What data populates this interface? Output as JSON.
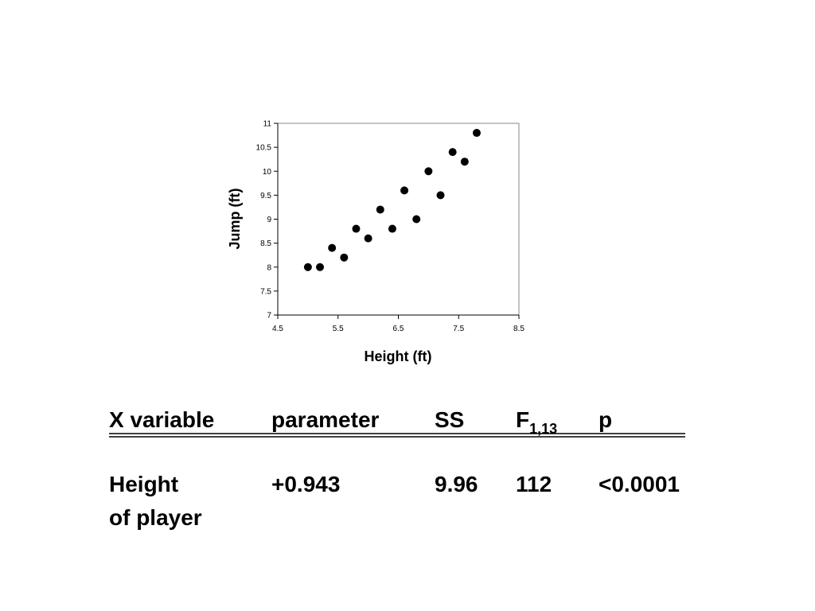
{
  "chart_data": {
    "type": "scatter",
    "x_label": "Height (ft)",
    "y_label": "Jump (ft)",
    "x": [
      5.0,
      5.2,
      5.4,
      5.6,
      5.8,
      6.0,
      6.2,
      6.4,
      6.6,
      6.8,
      7.0,
      7.2,
      7.4,
      7.6,
      7.8
    ],
    "values": [
      8.0,
      8.0,
      8.4,
      8.2,
      8.8,
      8.6,
      9.2,
      8.8,
      9.6,
      9.0,
      10.0,
      9.5,
      10.4,
      10.2,
      10.8
    ],
    "color": "#000000",
    "xlim": [
      4.5,
      8.5
    ],
    "xticks": [
      4.5,
      5.5,
      6.5,
      7.5,
      8.5
    ],
    "ylim": [
      7,
      11
    ],
    "yticks": [
      7,
      7.5,
      8,
      8.5,
      9,
      9.5,
      10,
      10.5,
      11
    ],
    "grid": false
  },
  "table": {
    "header": [
      "X variable",
      "parameter",
      "SS",
      {
        "text": "F",
        "subscript": "1,13"
      },
      "p"
    ],
    "rows": [
      [
        [
          "Height",
          "of player"
        ],
        "+0.943",
        "9.96",
        "112",
        "<0.0001"
      ]
    ]
  }
}
